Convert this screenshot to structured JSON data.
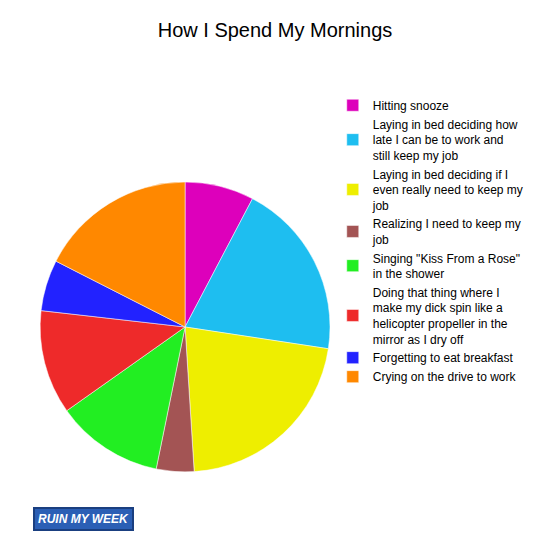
{
  "chart_data": {
    "type": "pie",
    "title": "How I Spend My Mornings",
    "categories": [
      "Hitting snooze",
      "Laying in bed deciding how late I can be to work and still keep my job",
      "Laying in bed deciding if I even really need to keep my job",
      "Realizing I need to keep my job",
      "Singing \"Kiss From a Rose\" in the shower",
      "Doing that thing where I make my dick spin like a helicopter propeller in the mirror as I dry off",
      "Forgetting to eat breakfast",
      "Crying on the drive to work"
    ],
    "values": [
      7.7,
      19.7,
      21.6,
      4.2,
      12,
      11.6,
      5.7,
      17.5
    ],
    "colors": [
      "#dd00bb",
      "#1ebef0",
      "#eeee00",
      "#a35454",
      "#22ee22",
      "#ee2a2a",
      "#2222ff",
      "#ff8800"
    ],
    "legend": "right",
    "data_labels": false,
    "annotations": [
      "RUIN MY WEEK"
    ]
  }
}
